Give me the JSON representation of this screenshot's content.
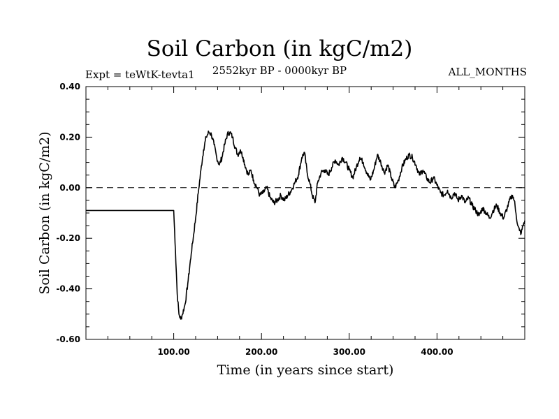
{
  "chart_data": {
    "type": "line",
    "title": "Soil Carbon (in kgC/m2)",
    "subtitle": "2552kyr BP - 0000kyr BP",
    "left_note": "Expt = teWtK-tevta1",
    "right_note": "ALL_MONTHS",
    "xlabel": "Time (in years since start)",
    "ylabel": "Soil Carbon (in kgC/m2)",
    "xlim": [
      0,
      500
    ],
    "ylim": [
      -0.6,
      0.4
    ],
    "xticks_major": [
      100,
      200,
      300,
      400
    ],
    "xtick_labels": [
      "100.00",
      "200.00",
      "300.00",
      "400.00"
    ],
    "yticks": [
      0.4,
      0.2,
      0.0,
      -0.2,
      -0.4,
      -0.6
    ],
    "ytick_labels": [
      "0.40",
      "0.20",
      "0.00",
      "-0.20",
      "-0.40",
      "-0.60"
    ],
    "reference_line": {
      "y": 0.0,
      "style": "dashed"
    },
    "series": [
      {
        "name": "Soil Carbon",
        "color": "#000000",
        "x": [
          0,
          99,
          100,
          102,
          104,
          106,
          108,
          110,
          113,
          116,
          120,
          125,
          128,
          131,
          134,
          137,
          140,
          143,
          146,
          149,
          152,
          155,
          158,
          161,
          164,
          167,
          170,
          173,
          176,
          179,
          182,
          185,
          188,
          191,
          195,
          198,
          202,
          206,
          210,
          214,
          218,
          222,
          226,
          230,
          234,
          238,
          242,
          246,
          249,
          252,
          255,
          258,
          261,
          264,
          268,
          272,
          276,
          280,
          284,
          288,
          292,
          296,
          300,
          304,
          308,
          312,
          316,
          320,
          324,
          328,
          332,
          336,
          340,
          344,
          348,
          352,
          356,
          360,
          364,
          368,
          372,
          376,
          380,
          384,
          388,
          392,
          396,
          400,
          404,
          408,
          412,
          416,
          420,
          424,
          428,
          432,
          436,
          440,
          444,
          448,
          452,
          456,
          460,
          464,
          468,
          472,
          476,
          480,
          484,
          486,
          488,
          490,
          492,
          494,
          496,
          498,
          500
        ],
        "y": [
          -0.09,
          -0.09,
          -0.09,
          -0.25,
          -0.42,
          -0.5,
          -0.52,
          -0.5,
          -0.46,
          -0.38,
          -0.26,
          -0.12,
          -0.02,
          0.07,
          0.15,
          0.2,
          0.22,
          0.21,
          0.17,
          0.12,
          0.09,
          0.12,
          0.17,
          0.21,
          0.22,
          0.2,
          0.16,
          0.13,
          0.15,
          0.12,
          0.08,
          0.05,
          0.07,
          0.03,
          0.0,
          -0.03,
          -0.02,
          0.0,
          -0.04,
          -0.06,
          -0.05,
          -0.03,
          -0.05,
          -0.03,
          -0.01,
          0.02,
          0.05,
          0.12,
          0.14,
          0.06,
          0.02,
          -0.03,
          -0.06,
          0.02,
          0.06,
          0.07,
          0.05,
          0.08,
          0.11,
          0.09,
          0.12,
          0.1,
          0.07,
          0.04,
          0.08,
          0.12,
          0.1,
          0.06,
          0.03,
          0.07,
          0.13,
          0.1,
          0.06,
          0.09,
          0.04,
          0.0,
          0.03,
          0.08,
          0.11,
          0.13,
          0.12,
          0.09,
          0.05,
          0.07,
          0.04,
          0.02,
          0.04,
          0.01,
          -0.02,
          -0.03,
          -0.01,
          -0.04,
          -0.02,
          -0.05,
          -0.03,
          -0.06,
          -0.04,
          -0.07,
          -0.09,
          -0.11,
          -0.08,
          -0.1,
          -0.12,
          -0.09,
          -0.07,
          -0.1,
          -0.12,
          -0.08,
          -0.04,
          -0.03,
          -0.05,
          -0.1,
          -0.15,
          -0.17,
          -0.18,
          -0.15,
          -0.13
        ]
      }
    ]
  }
}
